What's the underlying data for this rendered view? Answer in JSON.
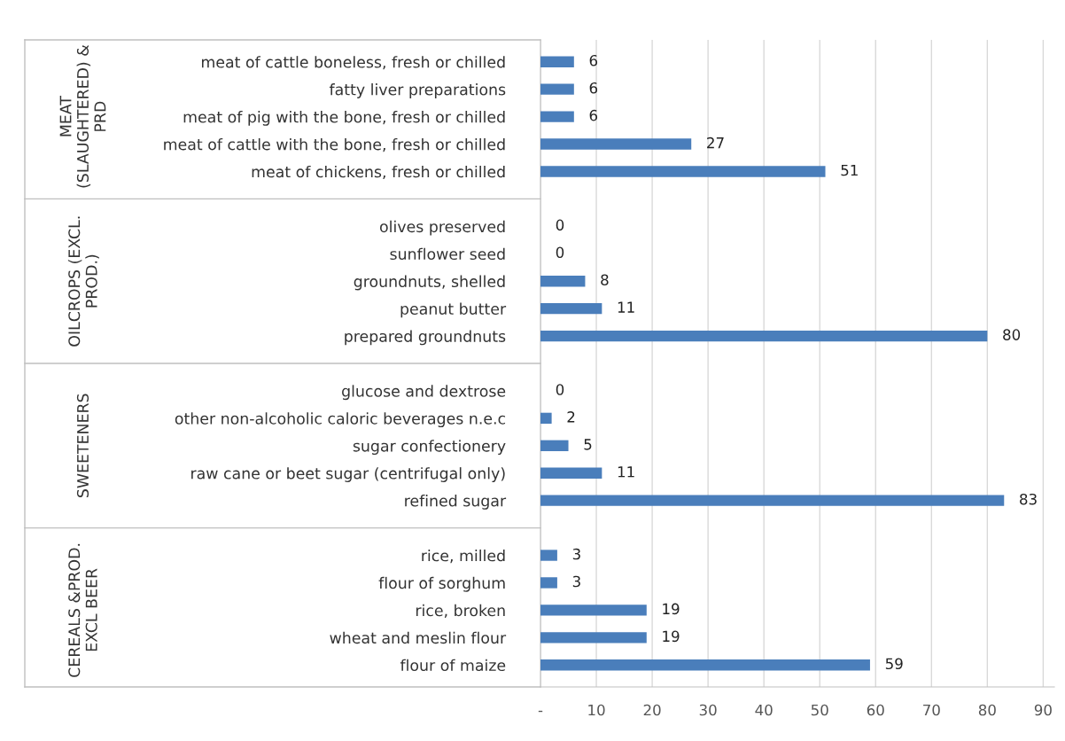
{
  "chart_data": {
    "type": "bar",
    "orientation": "horizontal",
    "categories": [
      "meat of cattle boneless, fresh or chilled",
      "fatty liver preparations",
      "meat of pig with the bone, fresh or chilled",
      "meat of cattle with the bone, fresh or chilled",
      "meat of chickens, fresh or chilled",
      "olives preserved",
      "sunflower seed",
      "groundnuts, shelled",
      "peanut butter",
      "prepared groundnuts",
      "glucose and dextrose",
      "other non-alcoholic caloric beverages n.e.c",
      "sugar confectionery",
      "raw cane or beet sugar (centrifugal only)",
      "refined sugar",
      "rice, milled",
      "flour of sorghum",
      "rice, broken",
      "wheat and meslin flour",
      "flour of maize"
    ],
    "values": [
      6,
      6,
      6,
      27,
      51,
      0,
      0,
      8,
      11,
      80,
      0,
      2,
      5,
      11,
      83,
      3,
      3,
      19,
      19,
      59
    ],
    "color": "#4a7ebb",
    "data_labels": true,
    "annotations": [
      "MEAT\n(SLAUGHTERED) &\nPRD",
      "OILCROPS (EXCL.\nPROD.)",
      "SWEETENERS",
      "CEREALS &PROD.\nEXCL BEER"
    ],
    "xlim": [
      0,
      92
    ],
    "xticks": [
      {
        "value": 0,
        "label": "-"
      },
      10,
      20,
      30,
      40,
      50,
      60,
      70,
      80,
      90
    ],
    "grid": "x",
    "legend": false
  }
}
